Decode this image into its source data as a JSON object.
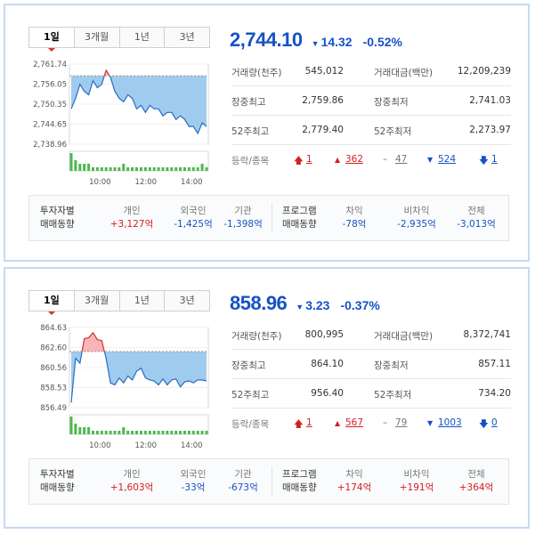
{
  "tab_labels": [
    "1일",
    "3개월",
    "1년",
    "3년"
  ],
  "kospi": {
    "price": "2,744.10",
    "change": "14.32",
    "rate": "-0.52%",
    "stats": [
      {
        "l1": "거래량(천주)",
        "v1": "545,012",
        "l2": "거래대금(백만)",
        "v2": "12,209,239"
      },
      {
        "l1": "장중최고",
        "v1": "2,759.86",
        "l2": "장중최저",
        "v2": "2,741.03"
      },
      {
        "l1": "52주최고",
        "v1": "2,779.40",
        "l2": "52주최저",
        "v2": "2,273.97"
      }
    ],
    "updown_label": "등락/종목",
    "upper_limit": "1",
    "up": "362",
    "flat": "47",
    "down": "524",
    "lower_limit": "1",
    "investor_label_1": "투자자별",
    "investor_label_2": "매매동향",
    "individual_label": "개인",
    "individual": "+3,127억",
    "foreign_label": "외국인",
    "foreign": "-1,425억",
    "institution_label": "기관",
    "institution": "-1,398억",
    "program_label_1": "프로그램",
    "program_label_2": "매매동향",
    "arb_label": "차익",
    "arb": "-78억",
    "nonarb_label": "비차익",
    "nonarb": "-2,935억",
    "total_label": "전체",
    "total": "-3,013억",
    "chart_data": {
      "type": "area",
      "y_ticks": [
        "2,761.74",
        "2,756.05",
        "2,750.35",
        "2,744.65",
        "2,738.96"
      ],
      "ylim": [
        2738.96,
        2761.74
      ],
      "baseline": 2758.42,
      "x_ticks": [
        "10:00",
        "12:00",
        "14:00"
      ],
      "series": [
        {
          "values": [
            2749,
            2752,
            2756,
            2754,
            2753,
            2757,
            2755,
            2756,
            2760,
            2758,
            2754,
            2752,
            2751,
            2753,
            2752,
            2749,
            2750,
            2748,
            2750,
            2749,
            2749,
            2747,
            2748,
            2748,
            2746,
            2747,
            2746,
            2744,
            2744,
            2742,
            2745,
            2744
          ]
        }
      ],
      "volume": [
        5,
        3,
        2,
        2,
        2,
        1,
        1,
        1,
        1,
        1,
        1,
        1,
        2,
        1,
        1,
        1,
        1,
        1,
        1,
        1,
        1,
        1,
        1,
        1,
        1,
        1,
        1,
        1,
        1,
        1,
        2,
        1
      ]
    }
  },
  "kosdaq": {
    "price": "858.96",
    "change": "3.23",
    "rate": "-0.37%",
    "stats": [
      {
        "l1": "거래량(천주)",
        "v1": "800,995",
        "l2": "거래대금(백만)",
        "v2": "8,372,741"
      },
      {
        "l1": "장중최고",
        "v1": "864.10",
        "l2": "장중최저",
        "v2": "857.11"
      },
      {
        "l1": "52주최고",
        "v1": "956.40",
        "l2": "52주최저",
        "v2": "734.20"
      }
    ],
    "updown_label": "등락/종목",
    "upper_limit": "1",
    "up": "567",
    "flat": "79",
    "down": "1003",
    "lower_limit": "0",
    "investor_label_1": "투자자별",
    "investor_label_2": "매매동향",
    "individual_label": "개인",
    "individual": "+1,603억",
    "foreign_label": "외국인",
    "foreign": "-33억",
    "institution_label": "기관",
    "institution": "-673억",
    "program_label_1": "프로그램",
    "program_label_2": "매매동향",
    "arb_label": "차익",
    "arb": "+174억",
    "nonarb_label": "비차익",
    "nonarb": "+191억",
    "total_label": "전체",
    "total": "+364억",
    "chart_data": {
      "type": "area",
      "y_ticks": [
        "864.63",
        "862.60",
        "860.56",
        "858.53",
        "856.49"
      ],
      "ylim": [
        856.49,
        864.63
      ],
      "baseline": 862.19,
      "x_ticks": [
        "10:00",
        "12:00",
        "14:00"
      ],
      "series": [
        {
          "values": [
            857,
            861.5,
            861,
            863.5,
            863.6,
            864.1,
            863.4,
            863.3,
            861.5,
            859.0,
            858.8,
            859.5,
            859.0,
            859.7,
            859.3,
            860.2,
            860.5,
            859.5,
            859.3,
            859.2,
            858.8,
            859.4,
            858.8,
            859.3,
            859.4,
            858.6,
            859.1,
            859.2,
            859.0,
            859.3,
            859.3,
            859.2
          ]
        }
      ],
      "volume": [
        5,
        3,
        2,
        2,
        2,
        1,
        1,
        1,
        1,
        1,
        1,
        1,
        2,
        1,
        1,
        1,
        1,
        1,
        1,
        1,
        1,
        1,
        1,
        1,
        1,
        1,
        1,
        1,
        1,
        1,
        1,
        1
      ]
    }
  }
}
